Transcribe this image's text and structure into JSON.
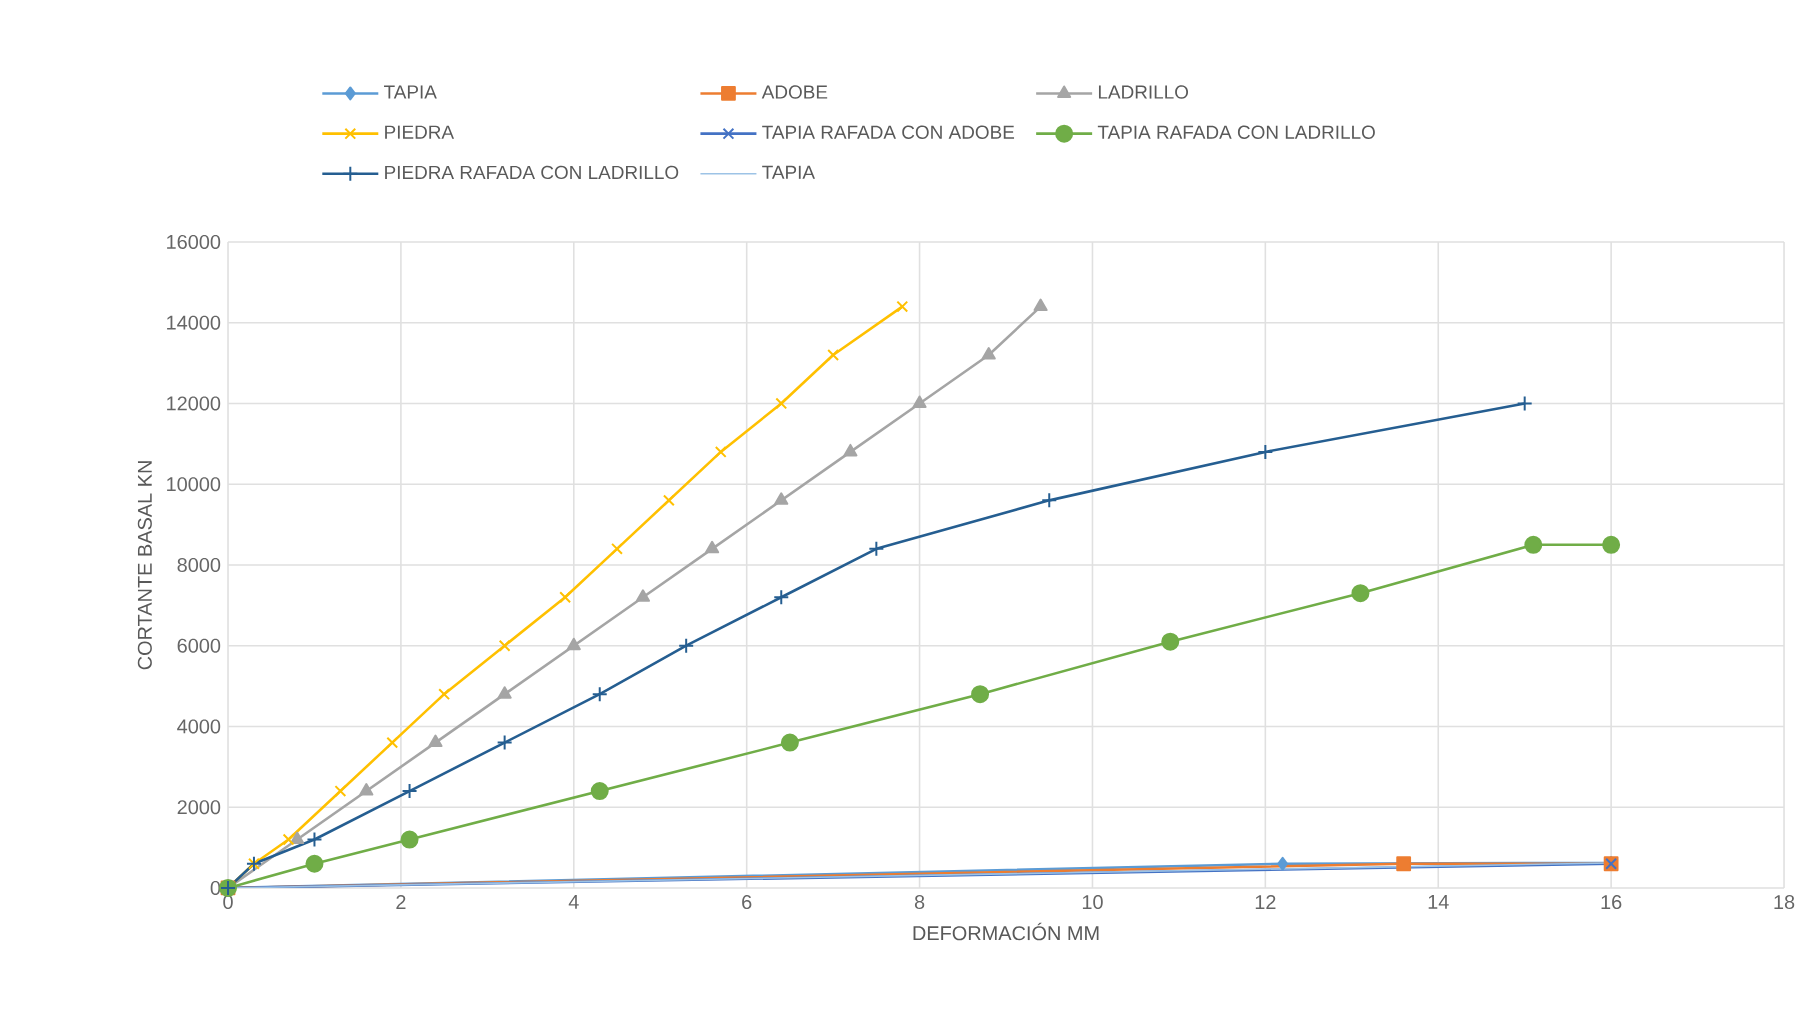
{
  "chart_data": {
    "type": "line",
    "xlabel": "DEFORMACIÓN MM",
    "ylabel": "CORTANTE BASAL KN",
    "xlim": [
      0,
      18
    ],
    "xticks": [
      0,
      2,
      4,
      6,
      8,
      10,
      12,
      14,
      16,
      18
    ],
    "ylim": [
      0,
      16000
    ],
    "yticks": [
      0,
      2000,
      4000,
      6000,
      8000,
      10000,
      12000,
      14000,
      16000
    ],
    "grid": true,
    "legend": "top",
    "series": [
      {
        "name": "TAPIA",
        "color": "#5b9bd5",
        "marker": "diamond",
        "x": [
          0,
          12.2,
          16
        ],
        "values": [
          0,
          600,
          620
        ]
      },
      {
        "name": "ADOBE",
        "color": "#ed7d31",
        "marker": "square",
        "x": [
          0,
          13.6,
          16
        ],
        "values": [
          0,
          600,
          600
        ]
      },
      {
        "name": "LADRILLO",
        "color": "#a5a5a5",
        "marker": "triangle",
        "x": [
          0,
          0.8,
          1.6,
          2.4,
          3.2,
          4.0,
          4.8,
          5.6,
          6.4,
          7.2,
          8.0,
          8.8,
          9.4
        ],
        "values": [
          0,
          1200,
          2400,
          3600,
          4800,
          6000,
          7200,
          8400,
          9600,
          10800,
          12000,
          13200,
          14400
        ]
      },
      {
        "name": "PIEDRA",
        "color": "#ffc000",
        "marker": "cross",
        "x": [
          0,
          0.3,
          0.7,
          1.3,
          1.9,
          2.5,
          3.2,
          3.9,
          4.5,
          5.1,
          5.7,
          6.4,
          7.0,
          7.8
        ],
        "values": [
          0,
          600,
          1200,
          2400,
          3600,
          4800,
          6000,
          7200,
          8400,
          9600,
          10800,
          12000,
          13200,
          14400
        ]
      },
      {
        "name": "TAPIA RAFADA CON ADOBE",
        "color": "#4472c4",
        "marker": "cross",
        "x": [
          0,
          16
        ],
        "values": [
          0,
          600
        ]
      },
      {
        "name": "TAPIA RAFADA CON LADRILLO",
        "color": "#70ad47",
        "marker": "circle",
        "x": [
          0,
          1.0,
          2.1,
          4.3,
          6.5,
          8.7,
          10.9,
          13.1,
          15.1,
          16.0
        ],
        "values": [
          0,
          600,
          1200,
          2400,
          3600,
          4800,
          6100,
          7300,
          8500,
          8500
        ]
      },
      {
        "name": "PIEDRA RAFADA CON LADRILLO",
        "color": "#255e91",
        "marker": "plus",
        "x": [
          0,
          0.3,
          1.0,
          2.1,
          3.2,
          4.3,
          5.3,
          6.4,
          7.5,
          9.5,
          12.0,
          15.0
        ],
        "values": [
          0,
          600,
          1200,
          2400,
          3600,
          4800,
          6000,
          7200,
          8400,
          9600,
          10800,
          12000
        ]
      },
      {
        "name": "TAPIA",
        "color": "#9dc3e6",
        "marker": "none",
        "x": [
          0,
          16
        ],
        "values": [
          0,
          620
        ]
      }
    ]
  }
}
